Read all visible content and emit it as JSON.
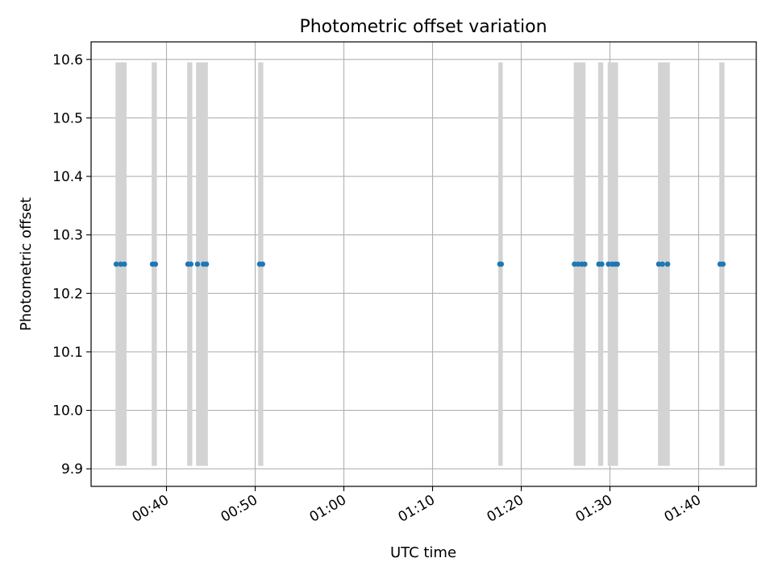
{
  "chart_data": {
    "type": "scatter",
    "title": "Photometric offset variation",
    "xlabel": "UTC time",
    "ylabel": "Photometric offset",
    "x_axis": {
      "kind": "time",
      "range": [
        "00:31:30",
        "01:46:30"
      ],
      "ticks": [
        "00:40",
        "00:50",
        "01:00",
        "01:10",
        "01:20",
        "01:30",
        "01:40"
      ]
    },
    "y_axis": {
      "range": [
        9.87,
        10.63
      ],
      "ticks": [
        "9.9",
        "10.0",
        "10.1",
        "10.2",
        "10.3",
        "10.4",
        "10.5",
        "10.6"
      ]
    },
    "grid": true,
    "shaded_intervals": {
      "color": "#d3d3d3",
      "y_range": [
        9.905,
        10.595
      ],
      "intervals": [
        [
          "00:34:15",
          "00:35:30"
        ],
        [
          "00:38:20",
          "00:38:55"
        ],
        [
          "00:42:20",
          "00:42:55"
        ],
        [
          "00:43:20",
          "00:44:40"
        ],
        [
          "00:50:20",
          "00:50:55"
        ],
        [
          "01:17:25",
          "01:17:55"
        ],
        [
          "01:25:55",
          "01:27:15"
        ],
        [
          "01:28:40",
          "01:29:15"
        ],
        [
          "01:29:45",
          "01:30:55"
        ],
        [
          "01:35:25",
          "01:36:45"
        ],
        [
          "01:42:20",
          "01:42:55"
        ]
      ]
    },
    "series": [
      {
        "color": "#1f77b4",
        "points": [
          {
            "x": "00:34:20",
            "y": 10.25
          },
          {
            "x": "00:34:50",
            "y": 10.25
          },
          {
            "x": "00:35:15",
            "y": 10.25
          },
          {
            "x": "00:38:25",
            "y": 10.25
          },
          {
            "x": "00:38:45",
            "y": 10.25
          },
          {
            "x": "00:42:25",
            "y": 10.25
          },
          {
            "x": "00:42:45",
            "y": 10.25
          },
          {
            "x": "00:43:30",
            "y": 10.25
          },
          {
            "x": "00:44:10",
            "y": 10.25
          },
          {
            "x": "00:44:30",
            "y": 10.25
          },
          {
            "x": "00:50:30",
            "y": 10.25
          },
          {
            "x": "00:50:50",
            "y": 10.25
          },
          {
            "x": "01:17:35",
            "y": 10.25
          },
          {
            "x": "01:17:45",
            "y": 10.25
          },
          {
            "x": "01:26:00",
            "y": 10.25
          },
          {
            "x": "01:26:25",
            "y": 10.25
          },
          {
            "x": "01:26:50",
            "y": 10.25
          },
          {
            "x": "01:27:10",
            "y": 10.25
          },
          {
            "x": "01:28:45",
            "y": 10.25
          },
          {
            "x": "01:29:05",
            "y": 10.25
          },
          {
            "x": "01:29:50",
            "y": 10.25
          },
          {
            "x": "01:30:15",
            "y": 10.25
          },
          {
            "x": "01:30:35",
            "y": 10.25
          },
          {
            "x": "01:30:50",
            "y": 10.25
          },
          {
            "x": "01:35:30",
            "y": 10.25
          },
          {
            "x": "01:35:55",
            "y": 10.25
          },
          {
            "x": "01:36:30",
            "y": 10.25
          },
          {
            "x": "01:42:25",
            "y": 10.25
          },
          {
            "x": "01:42:45",
            "y": 10.25
          }
        ]
      }
    ]
  }
}
